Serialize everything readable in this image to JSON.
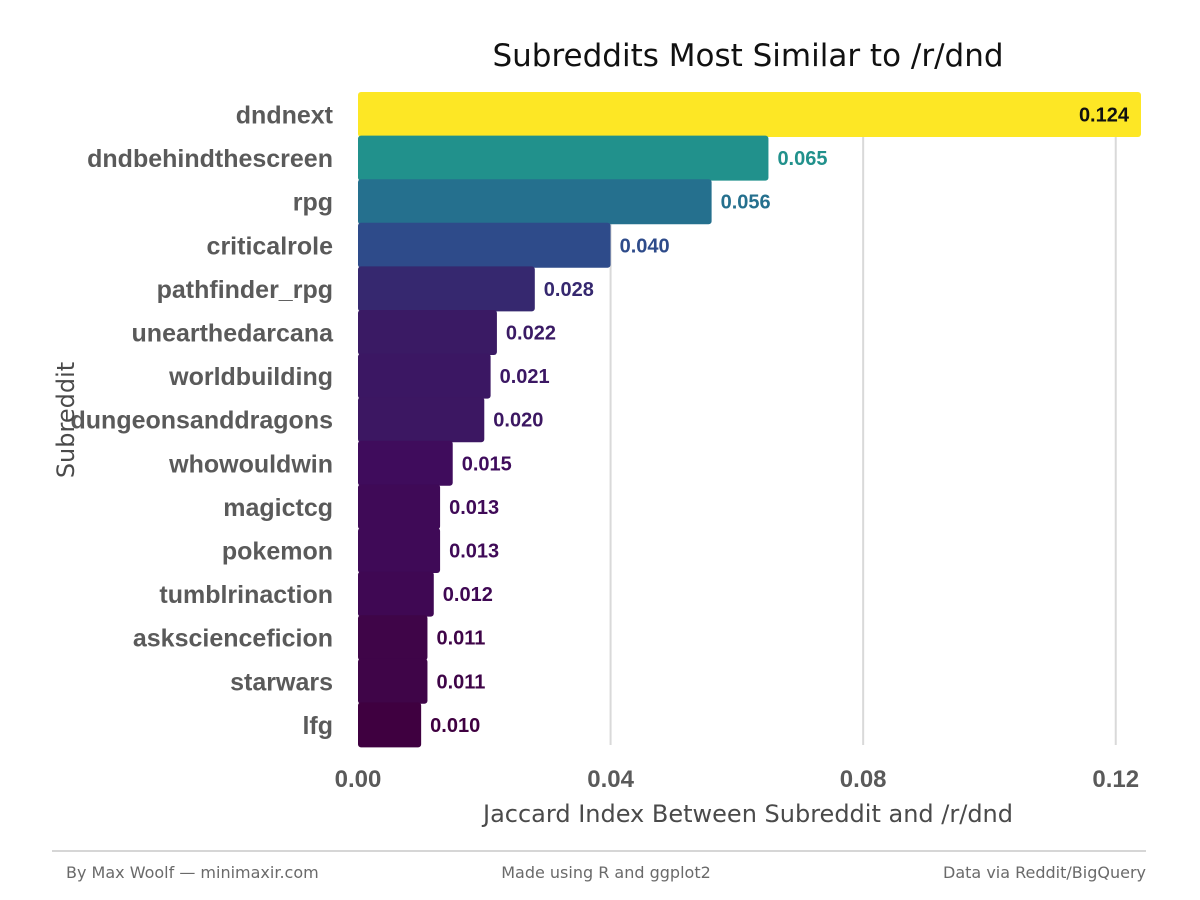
{
  "chart_data": {
    "type": "bar",
    "orientation": "horizontal",
    "title": "Subreddits Most Similar to /r/dnd",
    "xlabel": "Jaccard Index Between Subreddit and /r/dnd",
    "ylabel": "Subreddit",
    "xlim": [
      0,
      0.124
    ],
    "xticks": [
      0,
      0.04,
      0.08,
      0.12
    ],
    "xtick_labels": [
      "0.00",
      "0.04",
      "0.08",
      "0.12"
    ],
    "grid": "vertical",
    "categories": [
      "dndnext",
      "dndbehindthescreen",
      "rpg",
      "criticalrole",
      "pathfinder_rpg",
      "unearthedarcana",
      "worldbuilding",
      "dungeonsanddragons",
      "whowouldwin",
      "magictcg",
      "pokemon",
      "tumblrinaction",
      "askscienceficion",
      "starwars",
      "lfg"
    ],
    "values": [
      0.124,
      0.065,
      0.056,
      0.04,
      0.028,
      0.022,
      0.021,
      0.02,
      0.015,
      0.013,
      0.013,
      0.012,
      0.011,
      0.011,
      0.01
    ],
    "value_labels": [
      "0.124",
      "0.065",
      "0.056",
      "0.040",
      "0.028",
      "0.022",
      "0.021",
      "0.020",
      "0.015",
      "0.013",
      "0.013",
      "0.012",
      "0.011",
      "0.011",
      "0.010"
    ],
    "colors": [
      "#fde725",
      "#21918c",
      "#25708e",
      "#2e4b8a",
      "#36286f",
      "#3a1a64",
      "#3b1763",
      "#3c1762",
      "#3f0c5c",
      "#3f0a57",
      "#3f0a57",
      "#3f0853",
      "#3f0548",
      "#3f0548",
      "#3f0040"
    ],
    "value_label_colors": [
      "#111111",
      "#21918c",
      "#25708e",
      "#2e4b8a",
      "#36286f",
      "#3a1a64",
      "#3b1763",
      "#3c1762",
      "#3f0c5c",
      "#3f0a57",
      "#3f0a57",
      "#3f0853",
      "#3f0548",
      "#3f0548",
      "#3f0040"
    ]
  },
  "footer": {
    "left": "By Max Woolf — minimaxir.com",
    "center": "Made using R and ggplot2",
    "right": "Data via Reddit/BigQuery"
  }
}
